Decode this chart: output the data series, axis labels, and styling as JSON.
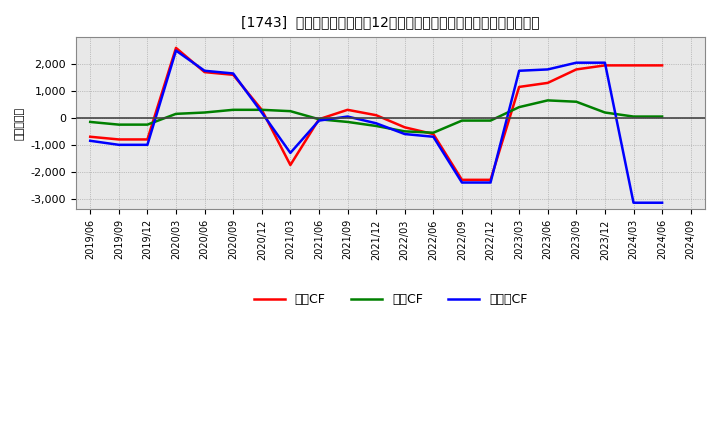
{
  "title": "[1743]  キャッシュフローの12か月移動合計の対前年同期増減額の推移",
  "ylabel": "（百万円）",
  "background_color": "#ffffff",
  "plot_bg_color": "#e8e8e8",
  "x_labels": [
    "2019/06",
    "2019/09",
    "2019/12",
    "2020/03",
    "2020/06",
    "2020/09",
    "2020/12",
    "2021/03",
    "2021/06",
    "2021/09",
    "2021/12",
    "2022/03",
    "2022/06",
    "2022/09",
    "2022/12",
    "2023/03",
    "2023/06",
    "2023/09",
    "2023/12",
    "2024/03",
    "2024/06",
    "2024/09"
  ],
  "operating_cf": [
    -700,
    -800,
    -800,
    2600,
    1700,
    1600,
    300,
    -1750,
    -50,
    300,
    100,
    -350,
    -600,
    -2300,
    -2300,
    1150,
    1300,
    1800,
    1950,
    1950,
    1950,
    null
  ],
  "investing_cf": [
    -150,
    -250,
    -250,
    150,
    200,
    300,
    300,
    250,
    -50,
    -150,
    -300,
    -500,
    -550,
    -100,
    -100,
    400,
    650,
    600,
    200,
    50,
    50,
    null
  ],
  "free_cf": [
    -850,
    -1000,
    -1000,
    2500,
    1750,
    1650,
    200,
    -1300,
    -100,
    50,
    -200,
    -600,
    -700,
    -2400,
    -2400,
    1750,
    1800,
    2050,
    2050,
    -3150,
    -3150,
    null
  ],
  "ylim": [
    -3400,
    3000
  ],
  "yticks": [
    -3000,
    -2000,
    -1000,
    0,
    1000,
    2000
  ],
  "line_colors": {
    "operating": "#ff0000",
    "investing": "#008000",
    "free": "#0000ff"
  },
  "legend_labels": [
    "営業CF",
    "投資CF",
    "フリーCF"
  ]
}
